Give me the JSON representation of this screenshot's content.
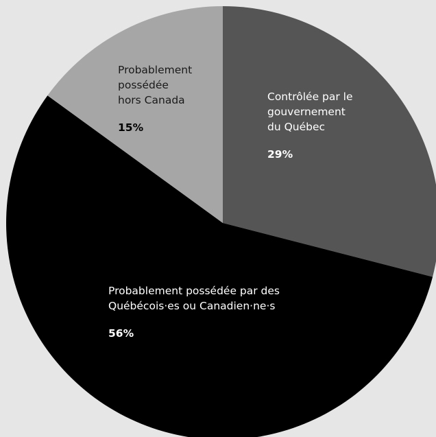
{
  "chart_data": {
    "type": "pie",
    "title": "",
    "slices": [
      {
        "label": "Contrôlée par le gouvernement du Québec",
        "label_lines": [
          "Contrôlée par le",
          "gouvernement",
          "du Québec"
        ],
        "value": 29,
        "value_label": "29%",
        "color": "#555555",
        "label_color": "#ffffff",
        "value_color": "#ffffff"
      },
      {
        "label": "Probablement possédée par des Québécois·es ou Canadien·ne·s",
        "label_lines": [
          "Probablement possédée par des",
          "Québécois·es ou Canadien·ne·s"
        ],
        "value": 56,
        "value_label": "56%",
        "color": "#000000",
        "label_color": "#ffffff",
        "value_color": "#ffffff"
      },
      {
        "label": "Probablement possédée hors Canada",
        "label_lines": [
          "Probablement",
          "possédée",
          "hors Canada"
        ],
        "value": 15,
        "value_label": "15%",
        "color": "#a6a6a6",
        "label_color": "#1a1a1a",
        "value_color": "#000000"
      }
    ],
    "start": "12 o'clock",
    "direction": "clockwise",
    "legend": "none",
    "background": "#e6e6e6"
  }
}
